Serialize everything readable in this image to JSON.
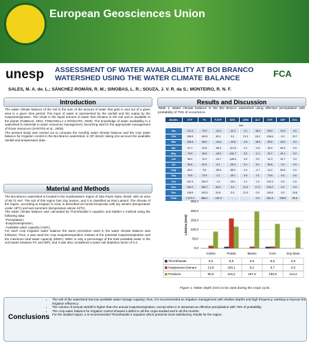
{
  "header": {
    "org": "European Geosciences Union",
    "logo_left": "unesp",
    "logo_right": "FCA",
    "title": "ASSESSMENT OF WATER AVAILABILITY AT BOI BRANCO WATERSHED USING THE WATER CLIMATE BALANCE",
    "authors": "SALES, M. A. de. L.; SÁNCHEZ-ROMÁN, R. M.; SINOBAS, L. R.; SOUZA, J. V. R. da S.; MONTEIRO, R. N. F."
  },
  "introduction": {
    "heading": "Introduction",
    "paragraphs": [
      "The water climate balance of the soil is the sum of the amount of water that gets in and out of a given area in a given time period. The input of water is represented by the rainfall and the output by the evapotranspiration. The result is the liquid amount of water that remains in the soil and is available to the plants (TUBELIS, 2001; TOMASELLA e RÓSSATO, 2005). The knowledge of water availability in a watershed is essential to water resources management, becoming vital for the appropriate management of those resources (SANTOS et al., 2009).",
      "The present study was carried out to compute the monthly water climate balance and the crop water balance for irrigation control in the Boi Branco watershed, in SP, Brazil, taking into account the available rainfall and temperature data."
    ]
  },
  "methods": {
    "heading": "Material and Methods",
    "paragraphs": [
      "The Boi Branco watershed is located in the southwestern region of São Paulo State, Brazil, with an area of 80,71 km². The soil of this region has clay texture, and it is classified as Red Latosol. The climate of the region, according to Köppen is Cwa, is described as humid temperate with dry winters (temperature under 18ºC) and wet summers (temperature above 22ºC).",
      "The water climate balance was calculated by Thornthwaite´s equation and Mather´s method using the following data:",
      "-Precipitation;",
      "-Evapotranspiration;",
      "-Available water capacity (AWC).",
      "For each crop irrigation water balance the same procedure used in the water climate balance was followed. Thus, it was used the crop evapotranspiration instead of the potential evapotranspiration and the maximum total water capacity (MWC). MWC is only a percentage of the total available water in the soil (water between FC and WP), and it was also considered a water soil depletion factor of 0.4."
    ]
  },
  "results": {
    "heading": "Results and Discussion",
    "table_caption": "Table 1. Water climate balance in the Boi Branco watershed using effective precipitation with probability of 75% of occurrence.",
    "table": {
      "columns": [
        "Months",
        "ETP",
        "Pe",
        "P-ETP",
        "NEG",
        "ARM",
        "ALT",
        "ETR",
        "DEF",
        "EXC"
      ],
      "unit": "mm",
      "rows": [
        [
          "Jan",
          "111.8",
          "70.9",
          "-41.0",
          "-41.0",
          "3.1",
          "-18.2",
          "89.0",
          "22.8",
          "0.0"
        ],
        [
          "Feb",
          "108.6",
          "149.5",
          "40.9",
          "0.0",
          "21.3",
          "18.2",
          "108.6",
          "0.0",
          "22.7"
        ],
        [
          "Mar",
          "108.6",
          "65.0",
          "-43.6",
          "-43.6",
          "2.8",
          "-18.5",
          "83.6",
          "25.0",
          "0.0"
        ],
        [
          "Apr",
          "91.7",
          "22.8",
          "-68.9",
          "-112.5",
          "0.1",
          "-2.6",
          "25.4",
          "66.3",
          "0.0"
        ],
        [
          "May",
          "79.9",
          "30.6",
          "-49.2",
          "-161.7",
          "0.0",
          "-0.1",
          "30.7",
          "49.1",
          "0.0"
        ],
        [
          "Jun",
          "56.0",
          "31.3",
          "-24.7",
          "-186.4",
          "0.0",
          "0.0",
          "31.3",
          "24.7",
          "0.0"
        ],
        [
          "Jul",
          "56.8",
          "61.9",
          "5.1",
          "-30.4",
          "5.1",
          "5.1",
          "56.8",
          "0.0",
          "0.0"
        ],
        [
          "Aug",
          "65.0",
          "9.5",
          "-55.6",
          "-86.0",
          "0.4",
          "-4.7",
          "14.2",
          "50.8",
          "0.0"
        ],
        [
          "Sep",
          "70.8",
          "72.9",
          "2.1",
          "-45.7",
          "2.5",
          "2.1",
          "70.8",
          "0.0",
          "0.0"
        ],
        [
          "Oct",
          "102.3",
          "103.9",
          "1.6",
          "-35.1",
          "4.1",
          "1.6",
          "102.3",
          "0.0",
          "0.0"
        ],
        [
          "Nov",
          "100.2",
          "126.7",
          "26.5",
          "0.0",
          "21.3",
          "17.2",
          "100.2",
          "0.0",
          "9.3"
        ],
        [
          "Dec",
          "118.8",
          "143.5",
          "24.8",
          "0.0",
          "21.3",
          "0.0",
          "118.8",
          "0.0",
          "24.8"
        ],
        [
          "Total",
          "1,070.4",
          "888.4",
          "-181.9",
          "-",
          "-",
          "0.0",
          "831.6",
          "238.8",
          "56.8"
        ]
      ]
    },
    "figure_caption": "Figure 1. Water depth (mm) to be used during the crops cycle."
  },
  "chart_data": {
    "type": "bar",
    "ylabel": "Lâmina (mm)",
    "categories": [
      "Cotton",
      "Potato",
      "Beans",
      "Corn",
      "Soy bean"
    ],
    "series": [
      {
        "name": "Thornthwaite",
        "color": "#1f3b73",
        "values": [
          0,
          8.5,
          0,
          8.5,
          0
        ],
        "value_labels": [
          "0,0",
          "8,5",
          "0,0",
          "8,5",
          "0,0"
        ]
      },
      {
        "name": "Hargreaves-Samani",
        "color": "#c0392b",
        "values": [
          13.8,
          160.1,
          9.2,
          9.7,
          0
        ],
        "value_labels": [
          "13,8",
          "160,1",
          "9,2",
          "9,7",
          "0,0"
        ]
      },
      {
        "name": "Producer",
        "color": "#8aa63a",
        "values": [
          90,
          116.2,
          197.5,
          130.9,
          112.2
        ],
        "value_labels": [
          "90,0",
          "116,2",
          "197,5",
          "130,9",
          "112,2"
        ]
      }
    ],
    "ylim": [
      0,
      250
    ],
    "yticks": [
      {
        "value": 0,
        "label": "0,0"
      },
      {
        "value": 50,
        "label": "50,0"
      },
      {
        "value": 100,
        "label": "100,0"
      },
      {
        "value": 150,
        "label": "150,0"
      },
      {
        "value": 200,
        "label": "200,0"
      },
      {
        "value": 250,
        "label": "250,0"
      }
    ],
    "grid": true
  },
  "conclusions": {
    "heading": "Conclusions",
    "items": [
      "The soil of the watershed has low available water storage capacity; thus, it is recommended an irrigation management with shallow depths and high frequency, seeking to improve the irrigation efficiency .",
      "The volume of annual rainfall is higher than the annual evapotranspiration, except when it is assessed as effective precipitation with 75% of probability.",
      "The crop water balance for irrigation control showed a deficit in all the crops studied and in all the months.",
      "For the studied region, it is recommended Thornthwaite´s equation which presents more satisfactory results for the region."
    ]
  }
}
